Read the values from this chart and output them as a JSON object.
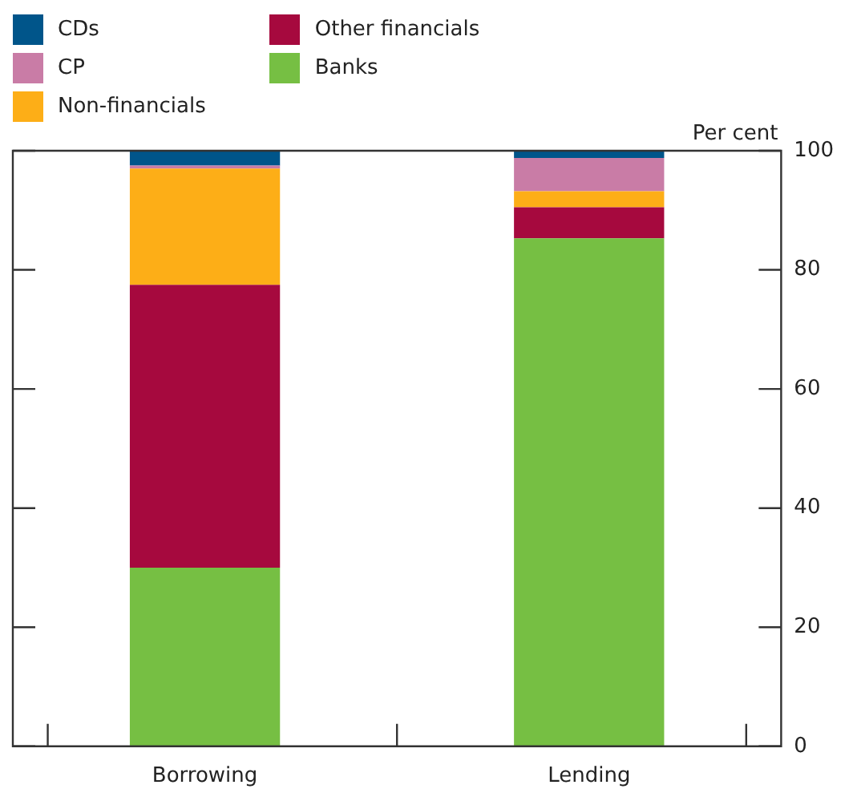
{
  "chart_data": {
    "type": "bar",
    "stacked": true,
    "ylabel": "Per cent",
    "categories": [
      "Borrowing",
      "Lending"
    ],
    "series": [
      {
        "name": "Banks",
        "color": "#76bf43",
        "values": [
          30,
          85.3
        ]
      },
      {
        "name": "Other financials",
        "color": "#a6093e",
        "values": [
          47.5,
          5.2
        ]
      },
      {
        "name": "Non-financials",
        "color": "#fdae17",
        "values": [
          19.5,
          2.7
        ]
      },
      {
        "name": "CP",
        "color": "#c97ca6",
        "values": [
          0.5,
          5.6
        ]
      },
      {
        "name": "CDs",
        "color": "#00558a",
        "values": [
          2.5,
          1.2
        ]
      }
    ],
    "ylim": [
      0,
      100
    ],
    "yticks": [
      0,
      20,
      40,
      60,
      80,
      100
    ],
    "grid": false,
    "legend": "top left"
  }
}
